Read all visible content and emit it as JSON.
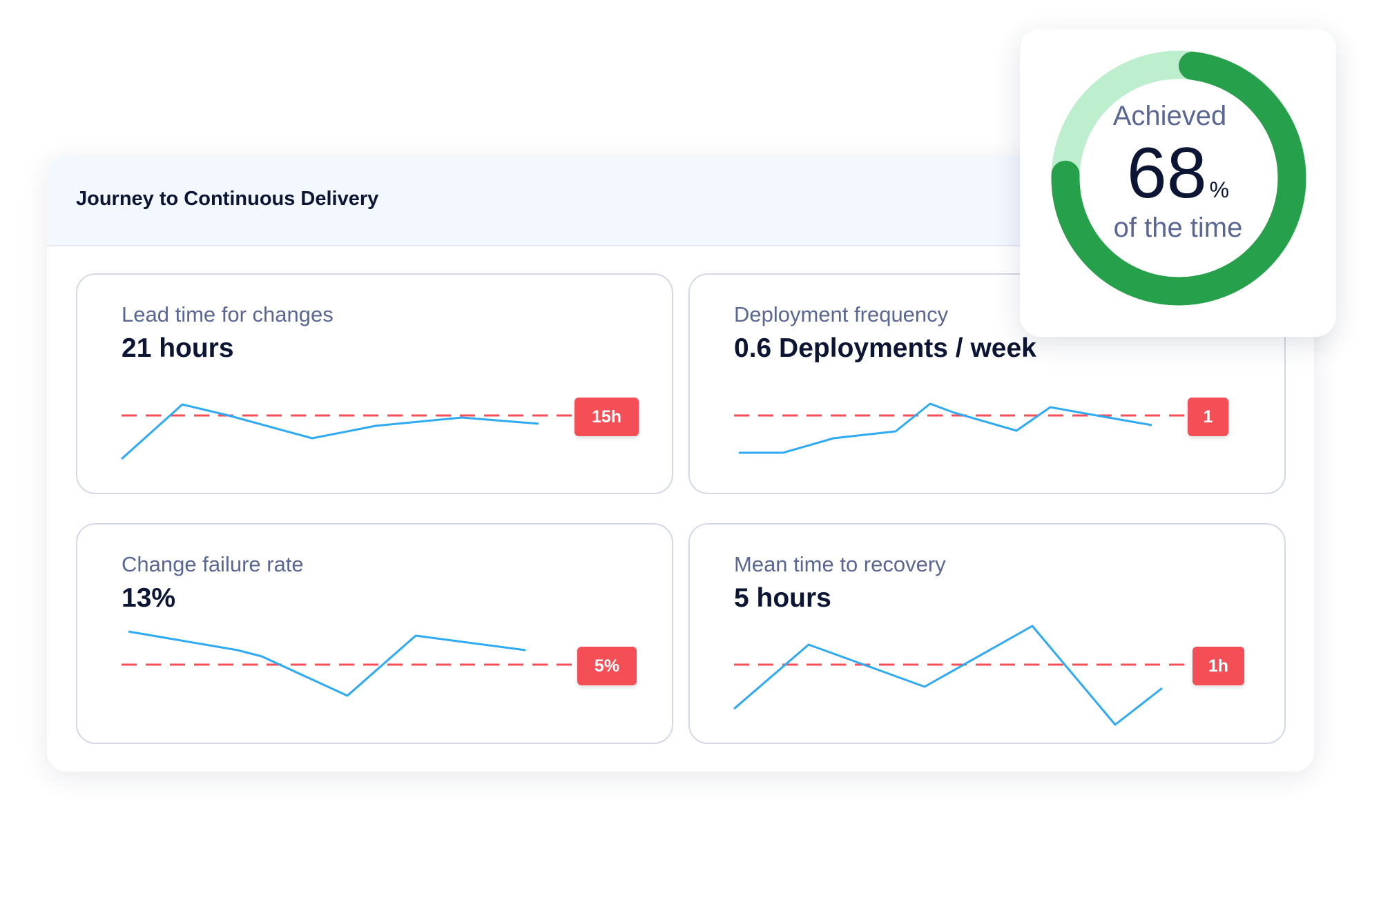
{
  "panel": {
    "title": "Journey to Continuous Delivery"
  },
  "metrics": [
    {
      "label": "Lead time for changes",
      "value": "21 hours",
      "target": "15h"
    },
    {
      "label": "Deployment frequency",
      "value": "0.6 Deployments / week",
      "target": "1"
    },
    {
      "label": "Change failure rate",
      "value": "13%",
      "target": "5%"
    },
    {
      "label": "Mean time to recovery",
      "value": "5 hours",
      "target": "1h"
    }
  ],
  "achievement": {
    "label_top": "Achieved",
    "value": "68",
    "unit": "%",
    "label_bottom": "of the time",
    "percent": 68
  },
  "colors": {
    "sparkline": "#2eaaf5",
    "target_line": "#f44e56",
    "badge": "#f44e56",
    "donut_fill": "#26a04a",
    "donut_track": "#bdeecd"
  }
}
